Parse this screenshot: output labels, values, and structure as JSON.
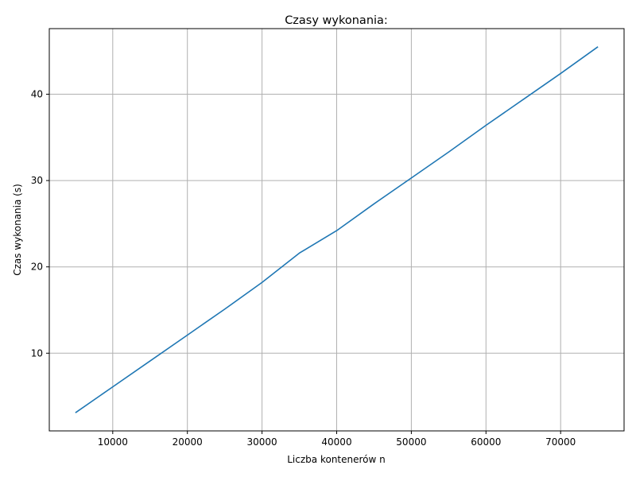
{
  "chart_data": {
    "type": "line",
    "title": "Czasy wykonania:",
    "xlabel": "Liczba kontenerów n",
    "ylabel": "Czas wykonania (s)",
    "xlim": [
      1500,
      78500
    ],
    "ylim": [
      1.0,
      47.6
    ],
    "xticks": [
      10000,
      20000,
      30000,
      40000,
      50000,
      60000,
      70000
    ],
    "yticks": [
      10,
      20,
      30,
      40
    ],
    "grid": true,
    "series": [
      {
        "color": "#1f77b4",
        "x": [
          5000,
          10000,
          15000,
          20000,
          25000,
          30000,
          35000,
          40000,
          45000,
          50000,
          55000,
          60000,
          65000,
          70000,
          75000
        ],
        "y": [
          3.1,
          6.1,
          9.1,
          12.1,
          15.1,
          18.2,
          21.6,
          24.2,
          27.3,
          30.3,
          33.3,
          36.4,
          39.4,
          42.4,
          45.5
        ]
      }
    ]
  }
}
